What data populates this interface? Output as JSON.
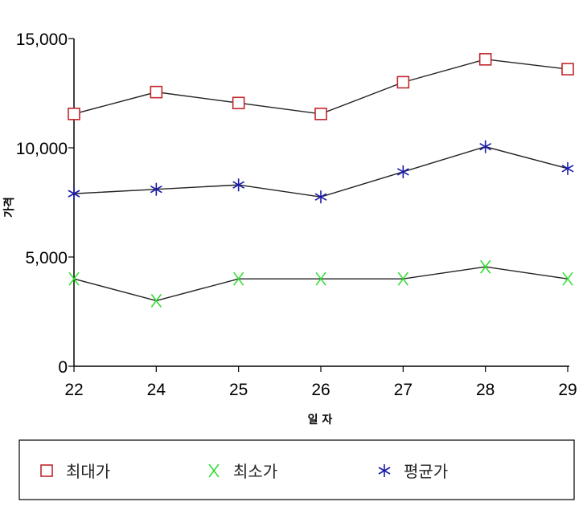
{
  "chart_data": {
    "type": "line",
    "categories": [
      "22",
      "24",
      "25",
      "26",
      "27",
      "28",
      "29"
    ],
    "series": [
      {
        "name": "최대가",
        "marker": "square-icon",
        "color": "#c0272d",
        "values": [
          11550,
          12550,
          12050,
          11550,
          13000,
          14050,
          13600
        ]
      },
      {
        "name": "최소가",
        "marker": "x-icon",
        "color": "#33dd33",
        "values": [
          4000,
          3000,
          4000,
          4000,
          4000,
          4550,
          4000
        ]
      },
      {
        "name": "평균가",
        "marker": "asterisk-icon",
        "color": "#1a1aaa",
        "values": [
          7900,
          8100,
          8300,
          7750,
          8900,
          10050,
          9050
        ]
      }
    ],
    "ylim": [
      0,
      15000
    ],
    "yticks": [
      "0",
      "5,000",
      "10,000",
      "15,000"
    ],
    "yticks_values": [
      0,
      5000,
      10000,
      15000
    ],
    "xlabel": "일  자",
    "ylabel": "가격",
    "line_color": "#222222",
    "legend_position": "bottom"
  }
}
